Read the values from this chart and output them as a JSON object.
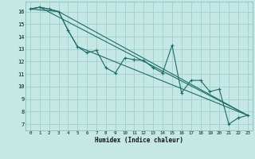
{
  "title": "",
  "xlabel": "Humidex (Indice chaleur)",
  "background_color": "#c5e8e5",
  "grid_color": "#9ecece",
  "line_color": "#1e6b65",
  "xlim": [
    -0.5,
    23.5
  ],
  "ylim": [
    6.5,
    16.8
  ],
  "yticks": [
    7,
    8,
    9,
    10,
    11,
    12,
    13,
    14,
    15,
    16
  ],
  "xticks": [
    0,
    1,
    2,
    3,
    4,
    5,
    6,
    7,
    8,
    9,
    10,
    11,
    12,
    13,
    14,
    15,
    16,
    17,
    18,
    19,
    20,
    21,
    22,
    23
  ],
  "series_main": [
    [
      0,
      16.2
    ],
    [
      1,
      16.35
    ],
    [
      2,
      16.2
    ],
    [
      3,
      16.0
    ],
    [
      4,
      14.5
    ],
    [
      5,
      13.2
    ],
    [
      6,
      12.7
    ],
    [
      7,
      12.9
    ],
    [
      8,
      11.5
    ],
    [
      9,
      11.1
    ],
    [
      10,
      12.3
    ],
    [
      11,
      12.15
    ],
    [
      12,
      12.1
    ],
    [
      13,
      11.5
    ],
    [
      14,
      11.1
    ],
    [
      15,
      13.3
    ],
    [
      16,
      9.5
    ],
    [
      17,
      10.5
    ],
    [
      18,
      10.5
    ],
    [
      19,
      9.6
    ],
    [
      20,
      9.8
    ],
    [
      21,
      7.0
    ],
    [
      22,
      7.5
    ],
    [
      23,
      7.7
    ]
  ],
  "series_smooth": [
    [
      0,
      16.2
    ],
    [
      1,
      16.35
    ],
    [
      2,
      16.2
    ],
    [
      3,
      16.0
    ],
    [
      4,
      14.5
    ],
    [
      5,
      13.2
    ],
    [
      23,
      7.7
    ]
  ],
  "series_line": [
    [
      0,
      16.2
    ],
    [
      3,
      16.0
    ],
    [
      23,
      7.7
    ]
  ],
  "series_line2": [
    [
      0,
      16.2
    ],
    [
      1,
      16.35
    ],
    [
      23,
      7.7
    ]
  ]
}
